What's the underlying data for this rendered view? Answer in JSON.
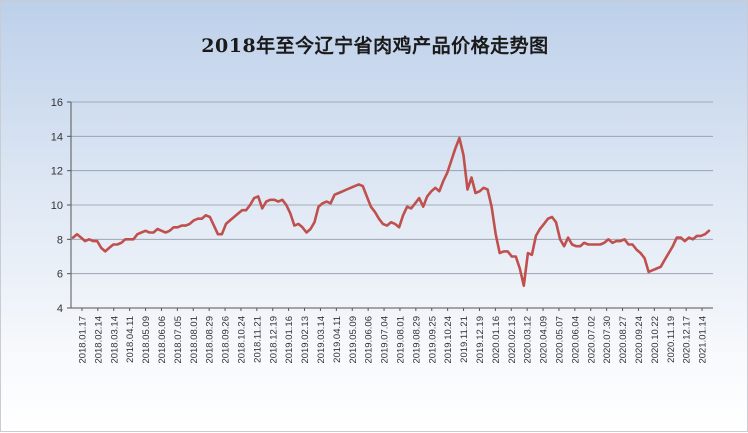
{
  "chart_data": {
    "type": "line",
    "title": "2018年至今辽宁省肉鸡产品价格走势图",
    "xlabel": "",
    "ylabel": "",
    "ylim": [
      4,
      16
    ],
    "yticks": [
      4,
      6,
      8,
      10,
      12,
      14,
      16
    ],
    "grid": true,
    "legend": "none",
    "line_color": "#c0504d",
    "tick_labels": [
      "2018.01.17",
      "2018.02.14",
      "2018.03.14",
      "2018.04.11",
      "2018.05.09",
      "2018.06.06",
      "2018.07.05",
      "2018.08.01",
      "2018.08.29",
      "2018.09.26",
      "2018.10.24",
      "2018.11.21",
      "2018.12.19",
      "2019.01.16",
      "2019.02.13",
      "2019.03.14",
      "2019.04.11",
      "2019.05.09",
      "2019.06.06",
      "2019.07.04",
      "2019.08.01",
      "2019.08.29",
      "2019.09.25",
      "2019.10.24",
      "2019.11.21",
      "2019.12.19",
      "2020.01.16",
      "2020.02.13",
      "2020.03.12",
      "2020.04.09",
      "2020.05.07",
      "2020.06.04",
      "2020.07.02",
      "2020.07.30",
      "2020.08.27",
      "2020.09.24",
      "2020.10.22",
      "2020.11.19",
      "2020.12.17",
      "2021.01.14"
    ],
    "series": [
      {
        "values": [
          8.1,
          8.3,
          8.1,
          7.9,
          8.0,
          7.9,
          7.9,
          7.5,
          7.3,
          7.5,
          7.7,
          7.7,
          7.8,
          8.0,
          8.0,
          8.0,
          8.3,
          8.4,
          8.5,
          8.4,
          8.4,
          8.6,
          8.5,
          8.4,
          8.5,
          8.7,
          8.7,
          8.8,
          8.8,
          8.9,
          9.1,
          9.2,
          9.2,
          9.4,
          9.3,
          8.8,
          8.3,
          8.3,
          8.9,
          9.1,
          9.3,
          9.5,
          9.7,
          9.7,
          10.0,
          10.4,
          10.5,
          9.8,
          10.2,
          10.3,
          10.3,
          10.2,
          10.3,
          10.0,
          9.5,
          8.8,
          8.9,
          8.7,
          8.4,
          8.6,
          9.0,
          9.9,
          10.1,
          10.2,
          10.1,
          10.6,
          10.7,
          10.8,
          10.9,
          11.0,
          11.1,
          11.2,
          11.1,
          10.5,
          9.9,
          9.6,
          9.2,
          8.9,
          8.8,
          9.0,
          8.9,
          8.7,
          9.4,
          9.9,
          9.8,
          10.1,
          10.4,
          9.9,
          10.5,
          10.8,
          11.0,
          10.8,
          11.4,
          11.9,
          12.6,
          13.3,
          13.9,
          12.9,
          10.9,
          11.6,
          10.7,
          10.8,
          11.0,
          10.9,
          9.9,
          8.3,
          7.2,
          7.3,
          7.3,
          7.0,
          7.0,
          6.3,
          5.3,
          7.2,
          7.1,
          8.2,
          8.6,
          8.9,
          9.2,
          9.3,
          9.0,
          8.0,
          7.6,
          8.1,
          7.7,
          7.6,
          7.6,
          7.8,
          7.7,
          7.7,
          7.7,
          7.7,
          7.8,
          8.0,
          7.8,
          7.9,
          7.9,
          8.0,
          7.7,
          7.7,
          7.4,
          7.2,
          6.9,
          6.1,
          6.2,
          6.3,
          6.4,
          6.8,
          7.2,
          7.6,
          8.1,
          8.1,
          7.9,
          8.1,
          8.0,
          8.2,
          8.2,
          8.3,
          8.5
        ]
      }
    ]
  }
}
